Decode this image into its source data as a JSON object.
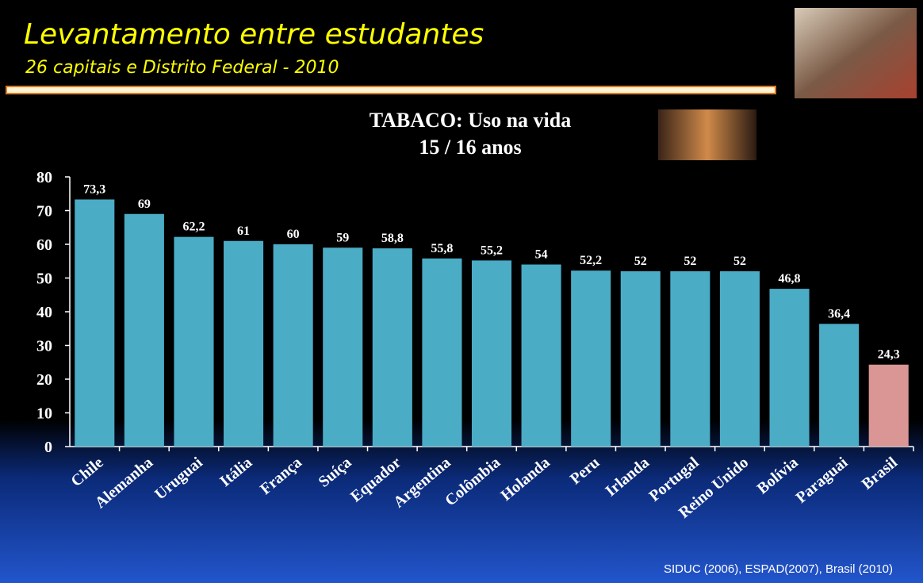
{
  "header": {
    "title": "Levantamento entre estudantes",
    "subtitle": "26 capitais e Distrito Federal - 2010"
  },
  "chart_data": {
    "type": "bar",
    "title": "TABACO: Uso na vida",
    "subtitle": "15 / 16 anos",
    "categories": [
      "Chile",
      "Alemanha",
      "Uruguai",
      "Itália",
      "França",
      "Suíça",
      "Equador",
      "Argentina",
      "Colômbia",
      "Holanda",
      "Peru",
      "Irlanda",
      "Portugal",
      "Reino Unido",
      "Bolívia",
      "Paraguai",
      "Brasil"
    ],
    "values": [
      73.3,
      69,
      62.2,
      61,
      60,
      59,
      58.8,
      55.8,
      55.2,
      54,
      52.2,
      52,
      52,
      52,
      46.8,
      36.4,
      24.3
    ],
    "value_labels": [
      "73,3",
      "69",
      "62,2",
      "61",
      "60",
      "59",
      "58,8",
      "55,8",
      "55,2",
      "54",
      "52,2",
      "52",
      "52",
      "52",
      "46,8",
      "36,4",
      "24,3"
    ],
    "colors": [
      "#4bacc6",
      "#4bacc6",
      "#4bacc6",
      "#4bacc6",
      "#4bacc6",
      "#4bacc6",
      "#4bacc6",
      "#4bacc6",
      "#4bacc6",
      "#4bacc6",
      "#4bacc6",
      "#4bacc6",
      "#4bacc6",
      "#4bacc6",
      "#4bacc6",
      "#4bacc6",
      "#d99694"
    ],
    "ylim": [
      0,
      80
    ],
    "yticks": [
      0,
      10,
      20,
      30,
      40,
      50,
      60,
      70,
      80
    ]
  },
  "footer": {
    "source": "SIDUC (2006), ESPAD(2007), Brasil (2010)"
  }
}
